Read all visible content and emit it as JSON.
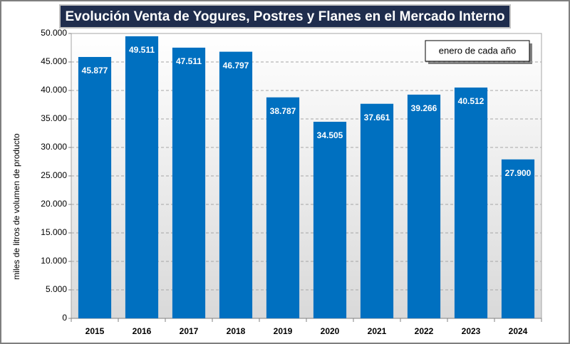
{
  "chart_data": {
    "type": "bar",
    "title": "Evolución Venta de Yogures, Postres y Flanes en el Mercado Interno",
    "annotation": "enero de cada año",
    "y_label": "miles de litros de volumen de producto",
    "categories": [
      "2015",
      "2016",
      "2017",
      "2018",
      "2019",
      "2020",
      "2021",
      "2022",
      "2023",
      "2024"
    ],
    "values": [
      45877,
      49511,
      47511,
      46797,
      38787,
      34505,
      37661,
      39266,
      40512,
      27900
    ],
    "value_labels": [
      "45.877",
      "49.511",
      "47.511",
      "46.797",
      "38.787",
      "34.505",
      "37.661",
      "39.266",
      "40.512",
      "27.900"
    ],
    "color": "#0070c0",
    "ylim": [
      0,
      50000
    ],
    "yticks": [
      0,
      {
        "value": 5000,
        "label": "5.000"
      },
      {
        "value": 10000,
        "label": "10.000"
      },
      {
        "value": 15000,
        "label": "15.000"
      },
      {
        "value": 20000,
        "label": "20.000"
      },
      {
        "value": 25000,
        "label": "25.000"
      },
      {
        "value": 30000,
        "label": "30.000"
      },
      {
        "value": 35000,
        "label": "35.000"
      },
      {
        "value": 40000,
        "label": "40.000"
      },
      {
        "value": 45000,
        "label": "45.000"
      },
      {
        "value": 50000,
        "label": "50.000"
      }
    ],
    "grid": true
  }
}
